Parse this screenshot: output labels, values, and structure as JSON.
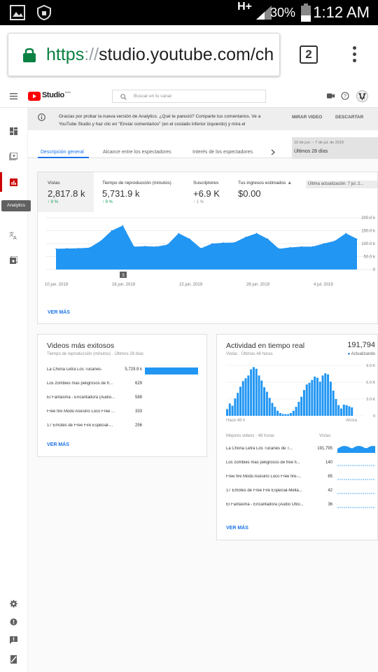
{
  "status_bar": {
    "network": "H+",
    "battery": "30%",
    "time": "1:12 AM"
  },
  "browser": {
    "url_protocol": "https",
    "url_separator": "://",
    "url_host": "studio.youtube.com/ch",
    "tab_count": "2"
  },
  "studio": {
    "logo_text": "Studio",
    "logo_beta": "beta",
    "search_placeholder": "Buscar en tu canal",
    "tooltip": "Analytics",
    "banner": {
      "text": "Gracias por probar la nueva versión de Analytics. ¿Qué te pareció? Comparte tus comentarios. Ve a YouTube Studio y haz clic en \"Enviar comentarios\" (en el costado inferior izquierdo) y mira el",
      "watch_video": "MIRAR VIDEO",
      "dismiss": "DESCARTAR"
    },
    "tabs": [
      "Descripción general",
      "Alcance entre los espectadores",
      "Interés de los espectadores"
    ],
    "date_range": {
      "range": "10 de jun. – 7 de jul. de 2019",
      "label": "Últimos 28 días"
    },
    "metrics": [
      {
        "label": "Vistas",
        "value": "2,817.8 k",
        "delta": "9 %"
      },
      {
        "label": "Tiempo de reproducción (minutos)",
        "value": "5,731.9 k",
        "delta": "9 %"
      },
      {
        "label": "Suscriptores",
        "value": "+6.9 K",
        "delta": "1 %"
      },
      {
        "label": "Tus ingresos estimados",
        "value": "$0.00"
      }
    ],
    "last_update": "Última actualización: 7 jul. 2...",
    "see_more": "VER MÁS",
    "main_chart": {
      "y_ticks": [
        "200.0 k",
        "150.0 k",
        "100.0 k",
        "50.0 k",
        "0"
      ],
      "x_labels": [
        "10 jun. 2019",
        "16 jun. 2019",
        "22 jun. 2019",
        "28 jun. 2019",
        "4 jul. 2019"
      ],
      "marker": "3"
    },
    "top_videos": {
      "title": "Videos más exitosos",
      "subtitle": "Tiempo de reproducción (minutos) · Últimos 28 días",
      "rows": [
        {
          "title": "La Chona Letra Los Tucanes-",
          "value": "5,729.9 k",
          "share": 1.0
        },
        {
          "title": "Los zombies mas peligrosos de fr...",
          "value": "629",
          "share": 0
        },
        {
          "title": "El Fantasma - Encantadora (Audio...",
          "value": "588",
          "share": 0
        },
        {
          "title": "Free fire Modo Asesino Loco Free ...",
          "value": "333",
          "share": 0
        },
        {
          "title": "17 Emotes de Free Fire Especial-...",
          "value": "256",
          "share": 0
        }
      ]
    },
    "realtime": {
      "title": "Actividad en tiempo real",
      "count": "191,794",
      "subtitle": "Vistas · Últimas 48 horas",
      "updating": "Actualizando",
      "y_ticks": [
        "9.0 K",
        "6.0 K",
        "3.0 K",
        "0"
      ],
      "x_left": "Hace 48 h",
      "x_right": "Ahora",
      "list_header": "Mejores videos · 48 horas",
      "list_col": "Vistas",
      "rows": [
        {
          "title": "La Chona Letra Los Tucanes de T...",
          "value": "191,795"
        },
        {
          "title": "Los zombies mas peligrosos de free fi...",
          "value": "140"
        },
        {
          "title": "Free fire Modo Asesino Loco Free fire-...",
          "value": "65"
        },
        {
          "title": "17 Emotes de Free Fire Especial-Mella...",
          "value": "42"
        },
        {
          "title": "El Fantasma - Encantadora (Audio Ofici...",
          "value": "36"
        }
      ]
    }
  },
  "chart_data": [
    {
      "type": "area",
      "x": [
        "10 jun. 2019",
        "11 jun.",
        "12 jun.",
        "13 jun.",
        "14 jun.",
        "15 jun.",
        "16 jun.",
        "17 jun.",
        "18 jun.",
        "19 jun.",
        "20 jun.",
        "21 jun.",
        "22 jun.",
        "23 jun.",
        "24 jun.",
        "25 jun.",
        "26 jun.",
        "27 jun.",
        "28 jun.",
        "29 jun.",
        "30 jun.",
        "1 jul.",
        "2 jul.",
        "3 jul.",
        "4 jul.",
        "5 jul.",
        "6 jul.",
        "7 jul."
      ],
      "values": [
        80,
        81,
        82,
        84,
        110,
        150,
        170,
        88,
        90,
        88,
        96,
        140,
        118,
        82,
        100,
        103,
        104,
        125,
        140,
        118,
        80,
        85,
        88,
        88,
        100,
        110,
        140,
        118
      ],
      "ylim": [
        0,
        200
      ],
      "y_unit": "k"
    },
    {
      "type": "bar",
      "values": [
        1200,
        2200,
        1800,
        3100,
        4100,
        5200,
        6200,
        6700,
        7200,
        8300,
        8700,
        8400,
        7200,
        6300,
        5100,
        4300,
        3200,
        2300,
        1600,
        900,
        500,
        320,
        300,
        310,
        500,
        900,
        1600,
        2500,
        3400,
        4600,
        5600,
        5900,
        6400,
        7000,
        6800,
        6100,
        7200,
        7600,
        7400,
        6100,
        4500,
        3000,
        1900,
        1300,
        2000,
        1900,
        1700,
        1500
      ],
      "ylim": [
        0,
        9000
      ]
    }
  ]
}
